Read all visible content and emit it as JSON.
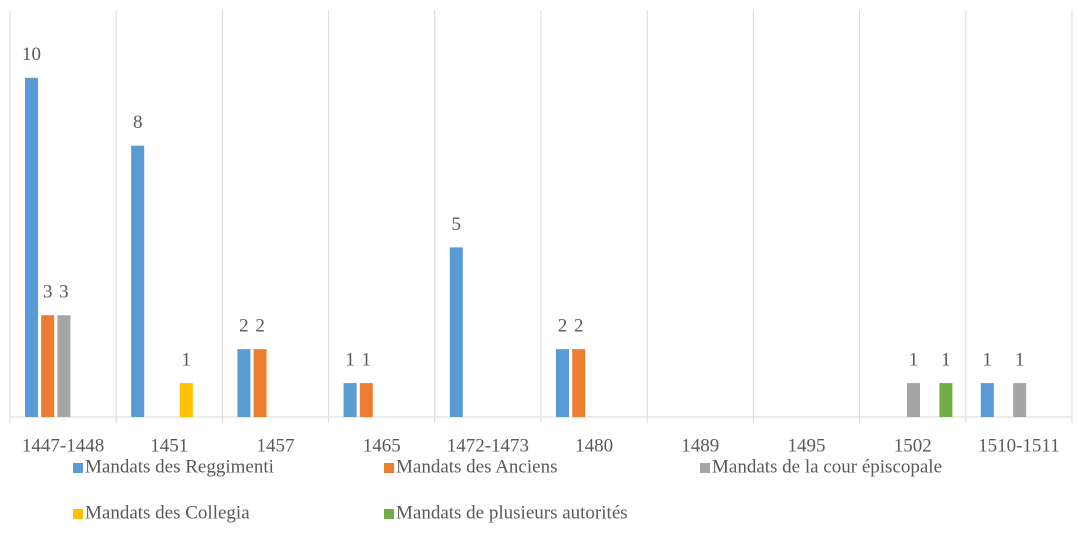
{
  "chart_data": {
    "type": "bar",
    "categories": [
      "1447-1448",
      "1451",
      "1457",
      "1465",
      "1472-1473",
      "1480",
      "1489",
      "1495",
      "1502",
      "1510-1511"
    ],
    "series": [
      {
        "name": "Mandats des Reggimenti",
        "color": "#5b9bd5",
        "values": [
          10,
          8,
          2,
          1,
          5,
          2,
          null,
          null,
          null,
          1
        ]
      },
      {
        "name": "Mandats des Anciens",
        "color": "#ed7d31",
        "values": [
          3,
          null,
          2,
          1,
          null,
          2,
          null,
          null,
          null,
          null
        ]
      },
      {
        "name": "Mandats de la cour épiscopale",
        "color": "#a5a5a5",
        "values": [
          3,
          null,
          null,
          null,
          null,
          null,
          null,
          null,
          1,
          1
        ]
      },
      {
        "name": "Mandats des Collegia",
        "color": "#ffc000",
        "values": [
          null,
          1,
          null,
          null,
          null,
          null,
          null,
          null,
          null,
          null
        ]
      },
      {
        "name": "Mandats de plusieurs autorités",
        "color": "#70ad47",
        "values": [
          null,
          null,
          null,
          null,
          null,
          null,
          null,
          null,
          1,
          null
        ]
      }
    ],
    "ylim": [
      0,
      12
    ],
    "grid": true,
    "legend": "bottom"
  }
}
